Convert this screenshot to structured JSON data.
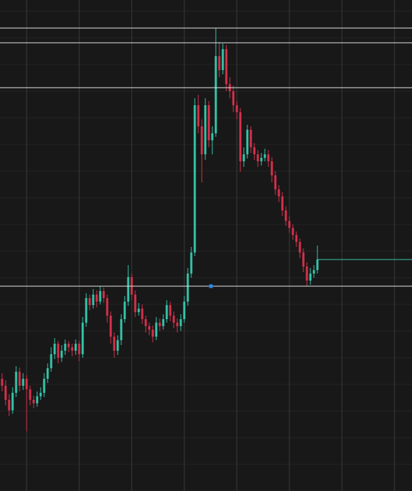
{
  "chart_data": {
    "type": "candlestick",
    "up_color": "#35c7ab",
    "down_color": "#d8314b",
    "level_color": "#e8e8e8",
    "grid": true,
    "xlim": [
      -0.6,
      117
    ],
    "xticks": [
      7,
      22,
      37,
      52,
      67,
      82,
      97,
      112
    ],
    "ylim": [
      0,
      700
    ],
    "yticks": [
      0,
      38,
      76,
      114,
      152,
      190,
      228,
      266,
      304,
      342,
      380,
      418,
      456,
      494,
      532,
      570,
      608,
      646,
      684
    ],
    "levels": [
      660,
      639,
      575,
      292
    ],
    "candles": [
      [
        160,
        168,
        142,
        150
      ],
      [
        150,
        158,
        122,
        130
      ],
      [
        130,
        138,
        107,
        115
      ],
      [
        115,
        148,
        110,
        140
      ],
      [
        140,
        178,
        134,
        170
      ],
      [
        170,
        176,
        142,
        150
      ],
      [
        150,
        168,
        144,
        160
      ],
      [
        160,
        165,
        85,
        145
      ],
      [
        145,
        150,
        122,
        130
      ],
      [
        130,
        136,
        118,
        125
      ],
      [
        125,
        142,
        120,
        135
      ],
      [
        135,
        148,
        130,
        140
      ],
      [
        140,
        168,
        134,
        160
      ],
      [
        160,
        182,
        154,
        175
      ],
      [
        175,
        205,
        170,
        195
      ],
      [
        195,
        218,
        188,
        210
      ],
      [
        210,
        214,
        182,
        190
      ],
      [
        190,
        208,
        184,
        200
      ],
      [
        200,
        216,
        194,
        210
      ],
      [
        210,
        214,
        198,
        205
      ],
      [
        205,
        210,
        192,
        200
      ],
      [
        200,
        216,
        194,
        210
      ],
      [
        210,
        214,
        185,
        195
      ],
      [
        195,
        248,
        190,
        240
      ],
      [
        240,
        282,
        234,
        275
      ],
      [
        275,
        280,
        258,
        265
      ],
      [
        265,
        288,
        260,
        280
      ],
      [
        280,
        286,
        262,
        270
      ],
      [
        270,
        292,
        266,
        285
      ],
      [
        285,
        290,
        268,
        275
      ],
      [
        275,
        280,
        240,
        250
      ],
      [
        250,
        256,
        210,
        220
      ],
      [
        220,
        226,
        190,
        200
      ],
      [
        200,
        222,
        194,
        215
      ],
      [
        215,
        252,
        208,
        245
      ],
      [
        245,
        278,
        240,
        270
      ],
      [
        270,
        322,
        264,
        305
      ],
      [
        305,
        310,
        272,
        280
      ],
      [
        280,
        286,
        248,
        255
      ],
      [
        255,
        268,
        250,
        260
      ],
      [
        260,
        266,
        238,
        245
      ],
      [
        245,
        250,
        226,
        235
      ],
      [
        235,
        240,
        222,
        230
      ],
      [
        230,
        236,
        212,
        220
      ],
      [
        220,
        248,
        215,
        240
      ],
      [
        240,
        246,
        228,
        235
      ],
      [
        235,
        252,
        230,
        245
      ],
      [
        245,
        272,
        240,
        265
      ],
      [
        265,
        270,
        242,
        250
      ],
      [
        250,
        256,
        232,
        240
      ],
      [
        240,
        246,
        226,
        235
      ],
      [
        235,
        252,
        228,
        245
      ],
      [
        245,
        278,
        240,
        270
      ],
      [
        270,
        318,
        264,
        310
      ],
      [
        310,
        348,
        304,
        340
      ],
      [
        340,
        560,
        335,
        550
      ],
      [
        550,
        565,
        510,
        520
      ],
      [
        520,
        530,
        440,
        480
      ],
      [
        480,
        560,
        472,
        550
      ],
      [
        550,
        556,
        490,
        500
      ],
      [
        500,
        520,
        480,
        510
      ],
      [
        510,
        660,
        505,
        620
      ],
      [
        620,
        640,
        590,
        600
      ],
      [
        600,
        638,
        594,
        630
      ],
      [
        630,
        636,
        570,
        580
      ],
      [
        580,
        590,
        560,
        570
      ],
      [
        570,
        578,
        540,
        550
      ],
      [
        550,
        556,
        530,
        540
      ],
      [
        540,
        546,
        455,
        470
      ],
      [
        470,
        490,
        462,
        480
      ],
      [
        480,
        522,
        474,
        515
      ],
      [
        515,
        520,
        482,
        490
      ],
      [
        490,
        496,
        472,
        480
      ],
      [
        480,
        486,
        462,
        470
      ],
      [
        470,
        482,
        464,
        475
      ],
      [
        475,
        488,
        470,
        480
      ],
      [
        480,
        486,
        462,
        470
      ],
      [
        470,
        476,
        440,
        450
      ],
      [
        450,
        456,
        422,
        430
      ],
      [
        430,
        436,
        412,
        420
      ],
      [
        420,
        426,
        392,
        400
      ],
      [
        400,
        406,
        378,
        385
      ],
      [
        385,
        392,
        368,
        375
      ],
      [
        375,
        380,
        358,
        365
      ],
      [
        365,
        370,
        348,
        355
      ],
      [
        355,
        360,
        332,
        340
      ],
      [
        340,
        346,
        312,
        320
      ],
      [
        320,
        326,
        292,
        300
      ],
      [
        300,
        318,
        294,
        310
      ],
      [
        310,
        322,
        304,
        315
      ],
      [
        315,
        350,
        310,
        330
      ]
    ]
  }
}
